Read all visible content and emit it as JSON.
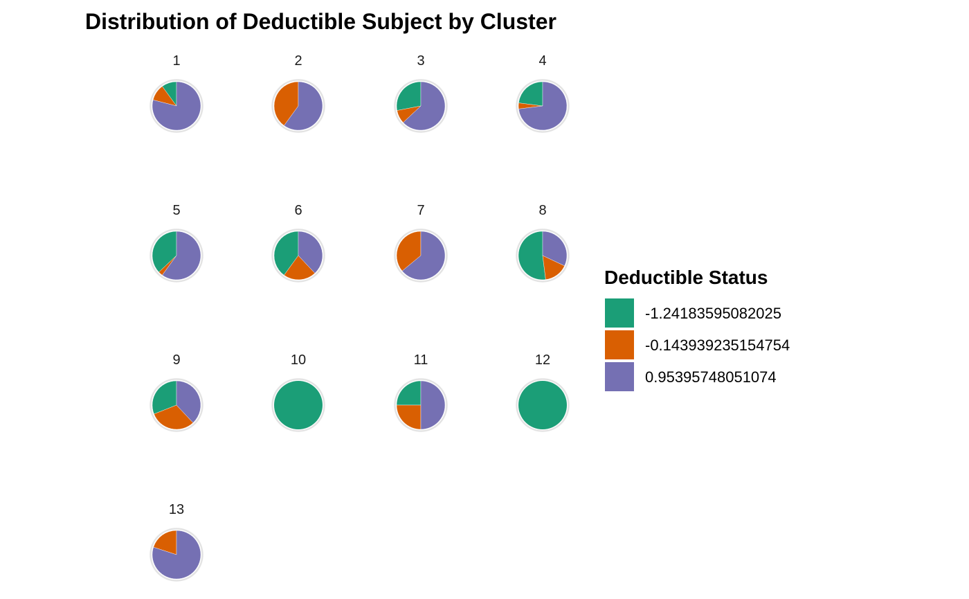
{
  "chart_data": {
    "type": "pie",
    "title": "Distribution of Deductible Subject by Cluster",
    "legend": {
      "title": "Deductible Status",
      "position": "right",
      "entries": [
        {
          "label": "-1.24183595082025",
          "color": "#1b9e77"
        },
        {
          "label": "-0.143939235154754",
          "color": "#d95f02"
        },
        {
          "label": "0.95395748051074",
          "color": "#7570b3"
        }
      ]
    },
    "categories": [
      "-1.24183595082025",
      "-0.143939235154754",
      "0.95395748051074"
    ],
    "facets": [
      {
        "label": "1",
        "values": [
          0.1,
          0.11,
          0.79
        ]
      },
      {
        "label": "2",
        "values": [
          0.0,
          0.4,
          0.6
        ]
      },
      {
        "label": "3",
        "values": [
          0.28,
          0.09,
          0.63
        ]
      },
      {
        "label": "4",
        "values": [
          0.23,
          0.04,
          0.73
        ]
      },
      {
        "label": "5",
        "values": [
          0.37,
          0.03,
          0.6
        ]
      },
      {
        "label": "6",
        "values": [
          0.4,
          0.22,
          0.38
        ]
      },
      {
        "label": "7",
        "values": [
          0.0,
          0.36,
          0.64
        ]
      },
      {
        "label": "8",
        "values": [
          0.52,
          0.16,
          0.32
        ]
      },
      {
        "label": "9",
        "values": [
          0.31,
          0.31,
          0.38
        ]
      },
      {
        "label": "10",
        "values": [
          1.0,
          0.0,
          0.0
        ]
      },
      {
        "label": "11",
        "values": [
          0.25,
          0.25,
          0.5
        ]
      },
      {
        "label": "12",
        "values": [
          1.0,
          0.0,
          0.0
        ]
      },
      {
        "label": "13",
        "values": [
          0.0,
          0.2,
          0.8
        ]
      }
    ]
  }
}
